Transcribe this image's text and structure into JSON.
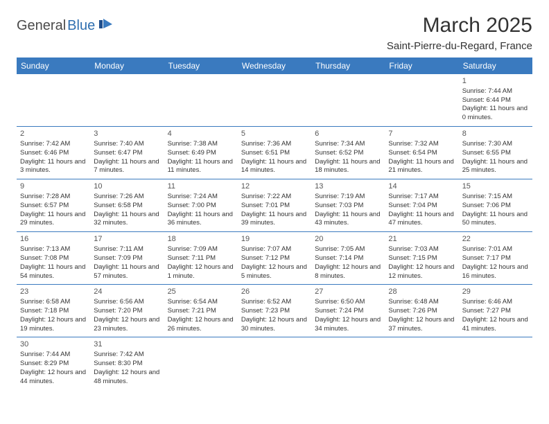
{
  "logo": {
    "text_dark": "General",
    "text_blue": "Blue"
  },
  "title": {
    "month": "March 2025",
    "location": "Saint-Pierre-du-Regard, France"
  },
  "day_headers": [
    "Sunday",
    "Monday",
    "Tuesday",
    "Wednesday",
    "Thursday",
    "Friday",
    "Saturday"
  ],
  "colors": {
    "header_bg": "#3a7abf",
    "header_text": "#ffffff",
    "border": "#3a7abf",
    "logo_blue": "#2f6fb0",
    "logo_dark": "#4a4a4a",
    "text": "#333333"
  },
  "weeks": [
    [
      null,
      null,
      null,
      null,
      null,
      null,
      {
        "n": "1",
        "sunrise": "Sunrise: 7:44 AM",
        "sunset": "Sunset: 6:44 PM",
        "daylight": "Daylight: 11 hours and 0 minutes."
      }
    ],
    [
      {
        "n": "2",
        "sunrise": "Sunrise: 7:42 AM",
        "sunset": "Sunset: 6:46 PM",
        "daylight": "Daylight: 11 hours and 3 minutes."
      },
      {
        "n": "3",
        "sunrise": "Sunrise: 7:40 AM",
        "sunset": "Sunset: 6:47 PM",
        "daylight": "Daylight: 11 hours and 7 minutes."
      },
      {
        "n": "4",
        "sunrise": "Sunrise: 7:38 AM",
        "sunset": "Sunset: 6:49 PM",
        "daylight": "Daylight: 11 hours and 11 minutes."
      },
      {
        "n": "5",
        "sunrise": "Sunrise: 7:36 AM",
        "sunset": "Sunset: 6:51 PM",
        "daylight": "Daylight: 11 hours and 14 minutes."
      },
      {
        "n": "6",
        "sunrise": "Sunrise: 7:34 AM",
        "sunset": "Sunset: 6:52 PM",
        "daylight": "Daylight: 11 hours and 18 minutes."
      },
      {
        "n": "7",
        "sunrise": "Sunrise: 7:32 AM",
        "sunset": "Sunset: 6:54 PM",
        "daylight": "Daylight: 11 hours and 21 minutes."
      },
      {
        "n": "8",
        "sunrise": "Sunrise: 7:30 AM",
        "sunset": "Sunset: 6:55 PM",
        "daylight": "Daylight: 11 hours and 25 minutes."
      }
    ],
    [
      {
        "n": "9",
        "sunrise": "Sunrise: 7:28 AM",
        "sunset": "Sunset: 6:57 PM",
        "daylight": "Daylight: 11 hours and 29 minutes."
      },
      {
        "n": "10",
        "sunrise": "Sunrise: 7:26 AM",
        "sunset": "Sunset: 6:58 PM",
        "daylight": "Daylight: 11 hours and 32 minutes."
      },
      {
        "n": "11",
        "sunrise": "Sunrise: 7:24 AM",
        "sunset": "Sunset: 7:00 PM",
        "daylight": "Daylight: 11 hours and 36 minutes."
      },
      {
        "n": "12",
        "sunrise": "Sunrise: 7:22 AM",
        "sunset": "Sunset: 7:01 PM",
        "daylight": "Daylight: 11 hours and 39 minutes."
      },
      {
        "n": "13",
        "sunrise": "Sunrise: 7:19 AM",
        "sunset": "Sunset: 7:03 PM",
        "daylight": "Daylight: 11 hours and 43 minutes."
      },
      {
        "n": "14",
        "sunrise": "Sunrise: 7:17 AM",
        "sunset": "Sunset: 7:04 PM",
        "daylight": "Daylight: 11 hours and 47 minutes."
      },
      {
        "n": "15",
        "sunrise": "Sunrise: 7:15 AM",
        "sunset": "Sunset: 7:06 PM",
        "daylight": "Daylight: 11 hours and 50 minutes."
      }
    ],
    [
      {
        "n": "16",
        "sunrise": "Sunrise: 7:13 AM",
        "sunset": "Sunset: 7:08 PM",
        "daylight": "Daylight: 11 hours and 54 minutes."
      },
      {
        "n": "17",
        "sunrise": "Sunrise: 7:11 AM",
        "sunset": "Sunset: 7:09 PM",
        "daylight": "Daylight: 11 hours and 57 minutes."
      },
      {
        "n": "18",
        "sunrise": "Sunrise: 7:09 AM",
        "sunset": "Sunset: 7:11 PM",
        "daylight": "Daylight: 12 hours and 1 minute."
      },
      {
        "n": "19",
        "sunrise": "Sunrise: 7:07 AM",
        "sunset": "Sunset: 7:12 PM",
        "daylight": "Daylight: 12 hours and 5 minutes."
      },
      {
        "n": "20",
        "sunrise": "Sunrise: 7:05 AM",
        "sunset": "Sunset: 7:14 PM",
        "daylight": "Daylight: 12 hours and 8 minutes."
      },
      {
        "n": "21",
        "sunrise": "Sunrise: 7:03 AM",
        "sunset": "Sunset: 7:15 PM",
        "daylight": "Daylight: 12 hours and 12 minutes."
      },
      {
        "n": "22",
        "sunrise": "Sunrise: 7:01 AM",
        "sunset": "Sunset: 7:17 PM",
        "daylight": "Daylight: 12 hours and 16 minutes."
      }
    ],
    [
      {
        "n": "23",
        "sunrise": "Sunrise: 6:58 AM",
        "sunset": "Sunset: 7:18 PM",
        "daylight": "Daylight: 12 hours and 19 minutes."
      },
      {
        "n": "24",
        "sunrise": "Sunrise: 6:56 AM",
        "sunset": "Sunset: 7:20 PM",
        "daylight": "Daylight: 12 hours and 23 minutes."
      },
      {
        "n": "25",
        "sunrise": "Sunrise: 6:54 AM",
        "sunset": "Sunset: 7:21 PM",
        "daylight": "Daylight: 12 hours and 26 minutes."
      },
      {
        "n": "26",
        "sunrise": "Sunrise: 6:52 AM",
        "sunset": "Sunset: 7:23 PM",
        "daylight": "Daylight: 12 hours and 30 minutes."
      },
      {
        "n": "27",
        "sunrise": "Sunrise: 6:50 AM",
        "sunset": "Sunset: 7:24 PM",
        "daylight": "Daylight: 12 hours and 34 minutes."
      },
      {
        "n": "28",
        "sunrise": "Sunrise: 6:48 AM",
        "sunset": "Sunset: 7:26 PM",
        "daylight": "Daylight: 12 hours and 37 minutes."
      },
      {
        "n": "29",
        "sunrise": "Sunrise: 6:46 AM",
        "sunset": "Sunset: 7:27 PM",
        "daylight": "Daylight: 12 hours and 41 minutes."
      }
    ],
    [
      {
        "n": "30",
        "sunrise": "Sunrise: 7:44 AM",
        "sunset": "Sunset: 8:29 PM",
        "daylight": "Daylight: 12 hours and 44 minutes."
      },
      {
        "n": "31",
        "sunrise": "Sunrise: 7:42 AM",
        "sunset": "Sunset: 8:30 PM",
        "daylight": "Daylight: 12 hours and 48 minutes."
      },
      null,
      null,
      null,
      null,
      null
    ]
  ]
}
